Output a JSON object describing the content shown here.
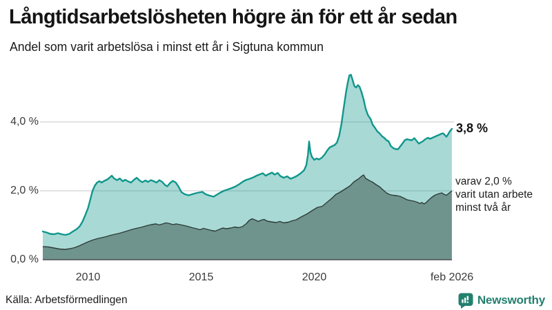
{
  "chart_data": {
    "type": "area",
    "title": "Långtidsarbetslösheten högre än för ett år sedan",
    "subtitle": "Andel som varit arbetslösa i minst ett år i Sigtuna kommun",
    "xlabel": "",
    "ylabel": "",
    "x_domain": [
      2008,
      2026.083
    ],
    "ylim": [
      0,
      5.54
    ],
    "grid": "horizontal",
    "legend_position": "none",
    "x_ticks": [
      {
        "year": 2010,
        "label": "2010"
      },
      {
        "year": 2015,
        "label": "2015"
      },
      {
        "year": 2020,
        "label": "2020"
      },
      {
        "year": 2026.083,
        "label": "feb 2026"
      }
    ],
    "y_ticks": [
      {
        "value": 0,
        "label": "0,0 %"
      },
      {
        "value": 2,
        "label": "2,0 %"
      },
      {
        "value": 4,
        "label": "4,0 %"
      }
    ],
    "colors": {
      "line_total": "#0f968b",
      "fill_total": "#0f968b",
      "fill_total_opacity": 0.36,
      "fill_two_years": "#6f948e",
      "line_two_years": "#2d3b38",
      "grid": "#d9d9d9",
      "axis": "#4d4d4d",
      "brand_teal": "#23806f"
    },
    "series": [
      {
        "name": "Andel arbetslösa minst ett år",
        "end_value": "3,8 %",
        "points": [
          [
            2008.0,
            0.82
          ],
          [
            2008.17,
            0.79
          ],
          [
            2008.33,
            0.75
          ],
          [
            2008.5,
            0.74
          ],
          [
            2008.67,
            0.77
          ],
          [
            2008.83,
            0.74
          ],
          [
            2009.0,
            0.72
          ],
          [
            2009.17,
            0.75
          ],
          [
            2009.33,
            0.82
          ],
          [
            2009.5,
            0.89
          ],
          [
            2009.63,
            0.97
          ],
          [
            2009.75,
            1.1
          ],
          [
            2009.87,
            1.28
          ],
          [
            2010.0,
            1.5
          ],
          [
            2010.1,
            1.75
          ],
          [
            2010.2,
            2.0
          ],
          [
            2010.3,
            2.15
          ],
          [
            2010.4,
            2.24
          ],
          [
            2010.5,
            2.28
          ],
          [
            2010.6,
            2.24
          ],
          [
            2010.72,
            2.29
          ],
          [
            2010.85,
            2.33
          ],
          [
            2010.95,
            2.38
          ],
          [
            2011.05,
            2.44
          ],
          [
            2011.15,
            2.36
          ],
          [
            2011.28,
            2.31
          ],
          [
            2011.4,
            2.36
          ],
          [
            2011.53,
            2.28
          ],
          [
            2011.65,
            2.32
          ],
          [
            2011.78,
            2.27
          ],
          [
            2011.9,
            2.24
          ],
          [
            2012.03,
            2.32
          ],
          [
            2012.15,
            2.38
          ],
          [
            2012.28,
            2.3
          ],
          [
            2012.4,
            2.25
          ],
          [
            2012.53,
            2.3
          ],
          [
            2012.65,
            2.26
          ],
          [
            2012.78,
            2.31
          ],
          [
            2012.9,
            2.28
          ],
          [
            2013.03,
            2.24
          ],
          [
            2013.15,
            2.31
          ],
          [
            2013.28,
            2.26
          ],
          [
            2013.4,
            2.17
          ],
          [
            2013.5,
            2.13
          ],
          [
            2013.63,
            2.23
          ],
          [
            2013.75,
            2.29
          ],
          [
            2013.88,
            2.24
          ],
          [
            2014.0,
            2.12
          ],
          [
            2014.13,
            1.96
          ],
          [
            2014.28,
            1.9
          ],
          [
            2014.45,
            1.87
          ],
          [
            2014.6,
            1.9
          ],
          [
            2014.75,
            1.93
          ],
          [
            2014.9,
            1.95
          ],
          [
            2015.05,
            1.97
          ],
          [
            2015.2,
            1.9
          ],
          [
            2015.38,
            1.86
          ],
          [
            2015.55,
            1.83
          ],
          [
            2015.7,
            1.89
          ],
          [
            2015.85,
            1.95
          ],
          [
            2016.0,
            2.0
          ],
          [
            2016.18,
            2.04
          ],
          [
            2016.35,
            2.08
          ],
          [
            2016.53,
            2.13
          ],
          [
            2016.7,
            2.2
          ],
          [
            2016.85,
            2.27
          ],
          [
            2017.0,
            2.32
          ],
          [
            2017.15,
            2.35
          ],
          [
            2017.3,
            2.39
          ],
          [
            2017.45,
            2.44
          ],
          [
            2017.6,
            2.48
          ],
          [
            2017.72,
            2.51
          ],
          [
            2017.85,
            2.44
          ],
          [
            2018.0,
            2.49
          ],
          [
            2018.13,
            2.53
          ],
          [
            2018.25,
            2.47
          ],
          [
            2018.38,
            2.52
          ],
          [
            2018.5,
            2.43
          ],
          [
            2018.65,
            2.38
          ],
          [
            2018.8,
            2.42
          ],
          [
            2018.95,
            2.35
          ],
          [
            2019.1,
            2.39
          ],
          [
            2019.25,
            2.44
          ],
          [
            2019.4,
            2.51
          ],
          [
            2019.55,
            2.6
          ],
          [
            2019.65,
            2.75
          ],
          [
            2019.72,
            3.05
          ],
          [
            2019.77,
            3.43
          ],
          [
            2019.83,
            3.12
          ],
          [
            2019.9,
            2.98
          ],
          [
            2020.0,
            2.9
          ],
          [
            2020.1,
            2.94
          ],
          [
            2020.2,
            2.91
          ],
          [
            2020.33,
            2.96
          ],
          [
            2020.45,
            3.05
          ],
          [
            2020.57,
            3.17
          ],
          [
            2020.68,
            3.26
          ],
          [
            2020.8,
            3.3
          ],
          [
            2020.9,
            3.33
          ],
          [
            2021.0,
            3.4
          ],
          [
            2021.1,
            3.6
          ],
          [
            2021.2,
            3.95
          ],
          [
            2021.3,
            4.4
          ],
          [
            2021.4,
            4.85
          ],
          [
            2021.48,
            5.15
          ],
          [
            2021.55,
            5.35
          ],
          [
            2021.62,
            5.37
          ],
          [
            2021.7,
            5.2
          ],
          [
            2021.77,
            5.04
          ],
          [
            2021.85,
            5.0
          ],
          [
            2021.93,
            5.07
          ],
          [
            2022.0,
            5.02
          ],
          [
            2022.08,
            4.88
          ],
          [
            2022.18,
            4.65
          ],
          [
            2022.27,
            4.38
          ],
          [
            2022.37,
            4.2
          ],
          [
            2022.49,
            4.08
          ],
          [
            2022.58,
            3.92
          ],
          [
            2022.67,
            3.84
          ],
          [
            2022.78,
            3.73
          ],
          [
            2022.88,
            3.67
          ],
          [
            2023.0,
            3.58
          ],
          [
            2023.09,
            3.54
          ],
          [
            2023.19,
            3.47
          ],
          [
            2023.28,
            3.44
          ],
          [
            2023.38,
            3.3
          ],
          [
            2023.49,
            3.24
          ],
          [
            2023.6,
            3.21
          ],
          [
            2023.7,
            3.21
          ],
          [
            2023.8,
            3.29
          ],
          [
            2023.89,
            3.37
          ],
          [
            2024.0,
            3.47
          ],
          [
            2024.1,
            3.5
          ],
          [
            2024.2,
            3.48
          ],
          [
            2024.31,
            3.47
          ],
          [
            2024.42,
            3.53
          ],
          [
            2024.52,
            3.45
          ],
          [
            2024.62,
            3.37
          ],
          [
            2024.72,
            3.41
          ],
          [
            2024.8,
            3.44
          ],
          [
            2024.91,
            3.5
          ],
          [
            2025.02,
            3.54
          ],
          [
            2025.12,
            3.51
          ],
          [
            2025.22,
            3.54
          ],
          [
            2025.32,
            3.57
          ],
          [
            2025.42,
            3.6
          ],
          [
            2025.53,
            3.63
          ],
          [
            2025.63,
            3.66
          ],
          [
            2025.69,
            3.67
          ],
          [
            2025.77,
            3.62
          ],
          [
            2025.84,
            3.57
          ],
          [
            2025.92,
            3.65
          ],
          [
            2025.99,
            3.73
          ],
          [
            2026.08,
            3.8
          ]
        ]
      },
      {
        "name": "varav utan arbete minst två år",
        "end_value": "2,0 %",
        "points": [
          [
            2008.0,
            0.38
          ],
          [
            2008.25,
            0.37
          ],
          [
            2008.5,
            0.34
          ],
          [
            2008.75,
            0.31
          ],
          [
            2009.0,
            0.3
          ],
          [
            2009.2,
            0.32
          ],
          [
            2009.4,
            0.35
          ],
          [
            2009.6,
            0.4
          ],
          [
            2009.8,
            0.46
          ],
          [
            2010.0,
            0.52
          ],
          [
            2010.2,
            0.57
          ],
          [
            2010.4,
            0.61
          ],
          [
            2010.6,
            0.64
          ],
          [
            2010.8,
            0.67
          ],
          [
            2011.0,
            0.71
          ],
          [
            2011.2,
            0.74
          ],
          [
            2011.4,
            0.77
          ],
          [
            2011.6,
            0.81
          ],
          [
            2011.8,
            0.85
          ],
          [
            2012.0,
            0.89
          ],
          [
            2012.2,
            0.92
          ],
          [
            2012.4,
            0.95
          ],
          [
            2012.6,
            0.99
          ],
          [
            2012.8,
            1.02
          ],
          [
            2013.0,
            1.04
          ],
          [
            2013.15,
            1.01
          ],
          [
            2013.3,
            1.04
          ],
          [
            2013.45,
            1.07
          ],
          [
            2013.6,
            1.05
          ],
          [
            2013.75,
            1.02
          ],
          [
            2013.9,
            1.04
          ],
          [
            2014.05,
            1.02
          ],
          [
            2014.2,
            1.0
          ],
          [
            2014.4,
            0.97
          ],
          [
            2014.6,
            0.93
          ],
          [
            2014.8,
            0.9
          ],
          [
            2014.95,
            0.87
          ],
          [
            2015.1,
            0.91
          ],
          [
            2015.28,
            0.88
          ],
          [
            2015.45,
            0.85
          ],
          [
            2015.62,
            0.83
          ],
          [
            2015.8,
            0.88
          ],
          [
            2015.95,
            0.92
          ],
          [
            2016.12,
            0.9
          ],
          [
            2016.3,
            0.92
          ],
          [
            2016.48,
            0.95
          ],
          [
            2016.65,
            0.93
          ],
          [
            2016.82,
            0.96
          ],
          [
            2017.0,
            1.05
          ],
          [
            2017.12,
            1.14
          ],
          [
            2017.25,
            1.19
          ],
          [
            2017.4,
            1.15
          ],
          [
            2017.52,
            1.11
          ],
          [
            2017.65,
            1.15
          ],
          [
            2017.78,
            1.17
          ],
          [
            2017.92,
            1.12
          ],
          [
            2018.1,
            1.1
          ],
          [
            2018.3,
            1.08
          ],
          [
            2018.48,
            1.11
          ],
          [
            2018.65,
            1.07
          ],
          [
            2018.85,
            1.09
          ],
          [
            2019.02,
            1.13
          ],
          [
            2019.2,
            1.16
          ],
          [
            2019.44,
            1.25
          ],
          [
            2019.68,
            1.33
          ],
          [
            2019.89,
            1.42
          ],
          [
            2020.14,
            1.52
          ],
          [
            2020.35,
            1.55
          ],
          [
            2020.53,
            1.65
          ],
          [
            2020.75,
            1.77
          ],
          [
            2020.96,
            1.9
          ],
          [
            2021.14,
            1.96
          ],
          [
            2021.35,
            2.05
          ],
          [
            2021.57,
            2.14
          ],
          [
            2021.75,
            2.26
          ],
          [
            2021.96,
            2.35
          ],
          [
            2022.1,
            2.43
          ],
          [
            2022.18,
            2.46
          ],
          [
            2022.27,
            2.36
          ],
          [
            2022.43,
            2.3
          ],
          [
            2022.58,
            2.25
          ],
          [
            2022.73,
            2.18
          ],
          [
            2022.88,
            2.12
          ],
          [
            2023.03,
            2.03
          ],
          [
            2023.19,
            1.94
          ],
          [
            2023.34,
            1.89
          ],
          [
            2023.49,
            1.87
          ],
          [
            2023.64,
            1.86
          ],
          [
            2023.79,
            1.84
          ],
          [
            2023.95,
            1.79
          ],
          [
            2024.1,
            1.74
          ],
          [
            2024.25,
            1.72
          ],
          [
            2024.4,
            1.7
          ],
          [
            2024.55,
            1.67
          ],
          [
            2024.66,
            1.63
          ],
          [
            2024.75,
            1.66
          ],
          [
            2024.85,
            1.62
          ],
          [
            2024.95,
            1.66
          ],
          [
            2025.02,
            1.71
          ],
          [
            2025.17,
            1.8
          ],
          [
            2025.32,
            1.87
          ],
          [
            2025.47,
            1.91
          ],
          [
            2025.63,
            1.94
          ],
          [
            2025.73,
            1.9
          ],
          [
            2025.84,
            1.87
          ],
          [
            2025.95,
            1.93
          ],
          [
            2026.08,
            2.0
          ]
        ]
      }
    ],
    "annotations": {
      "end_label_total": "3,8 %",
      "end_label_two_years": "varav 2,0 %\nvarit utan arbete\nminst två år"
    }
  },
  "footer": {
    "source": "Källa: Arbetsförmedlingen",
    "brand": "Newsworthy"
  }
}
